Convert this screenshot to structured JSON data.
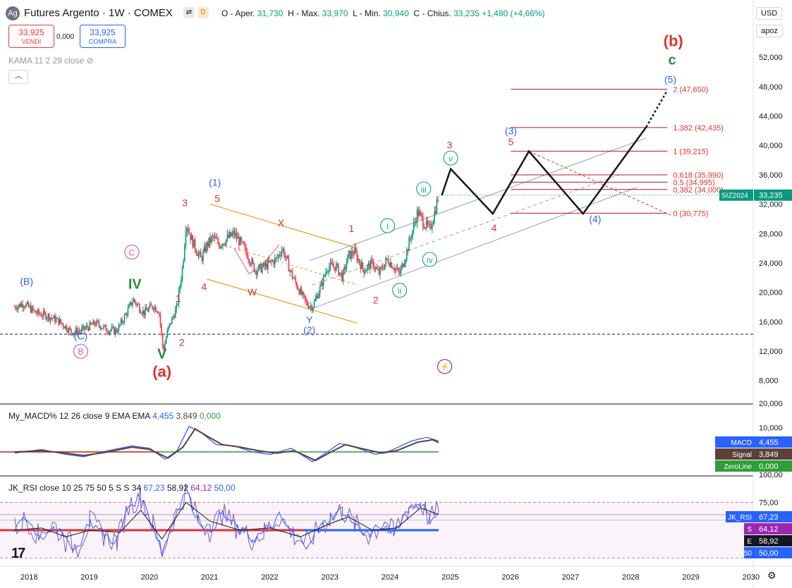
{
  "header": {
    "symbol_icon": "silver-icon",
    "title": "Futures Argento · 1W · COMEX",
    "badge_d": "D",
    "ohlc": {
      "open_label": "O - Aper.",
      "open": "31,730",
      "high_label": "H - Max.",
      "high": "33,970",
      "low_label": "L - Min.",
      "low": "30,940",
      "close_label": "C - Chius.",
      "close": "33,235",
      "change": "+1,480 (+4,66%)"
    },
    "sell_price": "33,925",
    "sell_label": "VENDI",
    "spread": "0,000",
    "buy_price": "33,925",
    "buy_label": "COMPRA",
    "indicator_kama": "KAMA 11 2 29 close",
    "collapse_icon": "chevron-up-icon"
  },
  "right_controls": {
    "currency": "USD",
    "scale": "apoz"
  },
  "colors": {
    "up": "#089981",
    "down": "#f23645",
    "blue": "#2962ff",
    "red": "#e03131",
    "green": "#2e8b3a",
    "teal": "#22a699",
    "pink": "#e05a9c",
    "orange": "#f59a23",
    "fib": "#b2182b"
  },
  "chart_data": [
    {
      "type": "candlestick",
      "title": "Futures Argento · 1W · COMEX",
      "x_axis": {
        "ticks": [
          "2018",
          "2019",
          "2020",
          "2021",
          "2022",
          "2023",
          "2024",
          "2025",
          "2026",
          "2027",
          "2028",
          "2029",
          "2030"
        ]
      },
      "y_axis": {
        "ticks": [
          "52,000",
          "48,000",
          "44,000",
          "40,000",
          "36,000",
          "32,000",
          "28,000",
          "24,000",
          "20,000",
          "16,000",
          "12,000",
          "8,000"
        ],
        "range": [
          5500,
          55500
        ]
      },
      "price_path": [
        [
          2017.75,
          18.0
        ],
        [
          2017.9,
          18.5
        ],
        [
          2018.1,
          17.2
        ],
        [
          2018.3,
          16.8
        ],
        [
          2018.5,
          16.0
        ],
        [
          2018.7,
          14.6
        ],
        [
          2018.85,
          14.8
        ],
        [
          2019.1,
          15.8
        ],
        [
          2019.3,
          14.9
        ],
        [
          2019.45,
          14.8
        ],
        [
          2019.6,
          17.0
        ],
        [
          2019.72,
          19.0
        ],
        [
          2019.9,
          17.2
        ],
        [
          2020.05,
          18.2
        ],
        [
          2020.15,
          17.5
        ],
        [
          2020.22,
          12.0
        ],
        [
          2020.3,
          15.0
        ],
        [
          2020.45,
          18.0
        ],
        [
          2020.55,
          24.0
        ],
        [
          2020.6,
          29.5
        ],
        [
          2020.7,
          27.0
        ],
        [
          2020.85,
          24.5
        ],
        [
          2020.95,
          26.5
        ],
        [
          2021.05,
          27.5
        ],
        [
          2021.15,
          26.5
        ],
        [
          2021.4,
          28.0
        ],
        [
          2021.6,
          25.5
        ],
        [
          2021.75,
          23.0
        ],
        [
          2021.9,
          23.5
        ],
        [
          2022.1,
          24.5
        ],
        [
          2022.2,
          26.0
        ],
        [
          2022.35,
          22.5
        ],
        [
          2022.5,
          20.0
        ],
        [
          2022.6,
          18.5
        ],
        [
          2022.7,
          18.0
        ],
        [
          2022.85,
          21.0
        ],
        [
          2022.95,
          23.5
        ],
        [
          2023.1,
          23.5
        ],
        [
          2023.2,
          22.0
        ],
        [
          2023.3,
          25.0
        ],
        [
          2023.4,
          25.5
        ],
        [
          2023.55,
          23.0
        ],
        [
          2023.7,
          24.0
        ],
        [
          2023.8,
          22.5
        ],
        [
          2023.95,
          24.5
        ],
        [
          2024.05,
          23.5
        ],
        [
          2024.15,
          22.5
        ],
        [
          2024.25,
          25.0
        ],
        [
          2024.35,
          28.0
        ],
        [
          2024.45,
          31.0
        ],
        [
          2024.55,
          29.5
        ],
        [
          2024.65,
          28.5
        ],
        [
          2024.72,
          30.5
        ],
        [
          2024.8,
          33.24
        ]
      ],
      "last_price_label": "33,235",
      "contract_label": "SIZ2024",
      "projection": {
        "path": [
          [
            2024.85,
            33.2
          ],
          [
            2025.0,
            36.8
          ],
          [
            2025.7,
            30.7
          ],
          [
            2026.3,
            39.2
          ],
          [
            2027.2,
            30.7
          ],
          [
            2028.25,
            42.5
          ]
        ],
        "dotted": [
          [
            2028.25,
            42.5
          ],
          [
            2028.6,
            47.5
          ]
        ]
      },
      "fibonacci": [
        {
          "label": "2 (47,650)",
          "value": 47.65
        },
        {
          "label": "1,382 (42,435)",
          "value": 42.435
        },
        {
          "label": "1 (39,215)",
          "value": 39.215
        },
        {
          "label": "0,618 (35,990)",
          "value": 35.99
        },
        {
          "label": "0,5 (34,995)",
          "value": 34.995
        },
        {
          "label": "0,382 (34,000)",
          "value": 34.0
        },
        {
          "label": "0 (30,775)",
          "value": 30.775
        }
      ],
      "dashed_support": 14.3,
      "wave_labels": [
        {
          "text": "(B)",
          "x": 2017.95,
          "y": 21.0,
          "color": "blue"
        },
        {
          "text": "(C)",
          "x": 2018.85,
          "y": 13.6,
          "color": "blue"
        },
        {
          "text": "B",
          "x": 2018.85,
          "y": 11.5,
          "color": "pink",
          "circled": true
        },
        {
          "text": "C",
          "x": 2019.7,
          "y": 25.0,
          "color": "pink",
          "circled": true
        },
        {
          "text": "IV",
          "x": 2019.75,
          "y": 20.5,
          "color": "green",
          "bold": true
        },
        {
          "text": "V",
          "x": 2020.2,
          "y": 11.0,
          "color": "green",
          "bold": true
        },
        {
          "text": "(a)",
          "x": 2020.2,
          "y": 8.5,
          "color": "red",
          "bold": true
        },
        {
          "text": "1",
          "x": 2020.47,
          "y": 18.7,
          "color": "red"
        },
        {
          "text": "2",
          "x": 2020.53,
          "y": 12.7,
          "color": "red"
        },
        {
          "text": "3",
          "x": 2020.58,
          "y": 31.7,
          "color": "red"
        },
        {
          "text": "4",
          "x": 2020.9,
          "y": 20.3,
          "color": "red"
        },
        {
          "text": "(1)",
          "x": 2021.08,
          "y": 34.5,
          "color": "blue"
        },
        {
          "text": "5",
          "x": 2021.12,
          "y": 32.3,
          "color": "red"
        },
        {
          "text": "W",
          "x": 2021.7,
          "y": 19.6,
          "color": "red"
        },
        {
          "text": "X",
          "x": 2022.18,
          "y": 29.0,
          "color": "red"
        },
        {
          "text": "Y",
          "x": 2022.65,
          "y": 15.8,
          "color": "blue"
        },
        {
          "text": "(2)",
          "x": 2022.65,
          "y": 14.4,
          "color": "blue"
        },
        {
          "text": "1",
          "x": 2023.35,
          "y": 28.2,
          "color": "red"
        },
        {
          "text": "2",
          "x": 2023.75,
          "y": 18.5,
          "color": "red"
        },
        {
          "text": "i",
          "x": 2023.95,
          "y": 28.6,
          "color": "teal",
          "circled": true
        },
        {
          "text": "ii",
          "x": 2024.15,
          "y": 19.8,
          "color": "teal",
          "circled": true
        },
        {
          "text": "iii",
          "x": 2024.55,
          "y": 33.6,
          "color": "teal",
          "circled": true
        },
        {
          "text": "iv",
          "x": 2024.65,
          "y": 24.0,
          "color": "teal",
          "circled": true
        },
        {
          "text": "3",
          "x": 2024.98,
          "y": 39.6,
          "color": "red"
        },
        {
          "text": "v",
          "x": 2025.0,
          "y": 37.8,
          "color": "teal",
          "circled": true
        },
        {
          "text": "4",
          "x": 2025.72,
          "y": 28.3,
          "color": "red"
        },
        {
          "text": "(3)",
          "x": 2026.0,
          "y": 41.5,
          "color": "blue"
        },
        {
          "text": "5",
          "x": 2026.0,
          "y": 40.0,
          "color": "red"
        },
        {
          "text": "(4)",
          "x": 2027.4,
          "y": 29.5,
          "color": "blue"
        },
        {
          "text": "(5)",
          "x": 2028.65,
          "y": 48.5,
          "color": "blue"
        },
        {
          "text": "c",
          "x": 2028.68,
          "y": 51.0,
          "color": "green",
          "bold": true
        },
        {
          "text": "(b)",
          "x": 2028.7,
          "y": 53.5,
          "color": "red",
          "bold": true
        }
      ],
      "alert_icon": "lightning-icon"
    },
    {
      "type": "line",
      "title": "My_MACD% 12 26 close 9 EMA EMA",
      "legend_values": [
        "4,455",
        "3,849",
        "0,000"
      ],
      "y_axis": {
        "ticks": [
          "20,000",
          "10,000"
        ],
        "range": [
          -6,
          20
        ]
      },
      "series": [
        {
          "name": "MACD",
          "value_label": "4,455",
          "color": "#2962ff",
          "values": [
            [
              2017.75,
              -0.5
            ],
            [
              2018.2,
              1.0
            ],
            [
              2018.6,
              -1.0
            ],
            [
              2018.9,
              -2.0
            ],
            [
              2019.3,
              0.5
            ],
            [
              2019.7,
              2.5
            ],
            [
              2020.0,
              1.5
            ],
            [
              2020.25,
              -3.0
            ],
            [
              2020.45,
              0.5
            ],
            [
              2020.65,
              10.5
            ],
            [
              2020.85,
              8.0
            ],
            [
              2021.1,
              3.0
            ],
            [
              2021.4,
              2.5
            ],
            [
              2021.7,
              0.0
            ],
            [
              2022.0,
              -1.0
            ],
            [
              2022.35,
              1.5
            ],
            [
              2022.7,
              -4.0
            ],
            [
              2022.95,
              0.0
            ],
            [
              2023.15,
              3.5
            ],
            [
              2023.4,
              2.0
            ],
            [
              2023.75,
              -1.0
            ],
            [
              2024.0,
              0.5
            ],
            [
              2024.35,
              4.5
            ],
            [
              2024.6,
              6.0
            ],
            [
              2024.8,
              4.5
            ]
          ]
        },
        {
          "name": "Signal",
          "value_label": "3,849",
          "color": "#5d4037",
          "values": [
            [
              2017.75,
              0.0
            ],
            [
              2018.2,
              0.5
            ],
            [
              2018.6,
              -0.5
            ],
            [
              2018.9,
              -1.5
            ],
            [
              2019.3,
              0.0
            ],
            [
              2019.7,
              2.0
            ],
            [
              2020.0,
              1.0
            ],
            [
              2020.3,
              -2.5
            ],
            [
              2020.55,
              2.0
            ],
            [
              2020.75,
              9.5
            ],
            [
              2020.95,
              6.5
            ],
            [
              2021.2,
              3.0
            ],
            [
              2021.5,
              2.0
            ],
            [
              2021.8,
              0.5
            ],
            [
              2022.1,
              -0.5
            ],
            [
              2022.4,
              0.5
            ],
            [
              2022.75,
              -3.5
            ],
            [
              2023.05,
              0.5
            ],
            [
              2023.25,
              3.0
            ],
            [
              2023.5,
              1.5
            ],
            [
              2023.85,
              -0.5
            ],
            [
              2024.1,
              0.5
            ],
            [
              2024.45,
              4.0
            ],
            [
              2024.7,
              5.0
            ],
            [
              2024.8,
              3.8
            ]
          ]
        },
        {
          "name": "ZeroLine",
          "value_label": "0,000",
          "color": "#2e9e3a",
          "values": [
            [
              2017.75,
              0
            ],
            [
              2024.8,
              0
            ]
          ]
        }
      ]
    },
    {
      "type": "line",
      "title": "JK_RSI close 10 25 75 50 5 S S 34",
      "legend_values": [
        "67,23",
        "58,92",
        "64,12",
        "50,00"
      ],
      "y_axis": {
        "ticks": [
          "100,00",
          "75,00"
        ],
        "range": [
          10,
          105
        ]
      },
      "series": [
        {
          "name": "JK_RSI",
          "value_label": "67,23",
          "color": "#2962ff",
          "values": [
            [
              2017.75,
              52
            ],
            [
              2017.95,
              60
            ],
            [
              2018.15,
              45
            ],
            [
              2018.4,
              55
            ],
            [
              2018.6,
              40
            ],
            [
              2018.8,
              35
            ],
            [
              2019.0,
              58
            ],
            [
              2019.25,
              45
            ],
            [
              2019.45,
              40
            ],
            [
              2019.65,
              72
            ],
            [
              2019.85,
              80
            ],
            [
              2020.05,
              55
            ],
            [
              2020.2,
              30
            ],
            [
              2020.4,
              60
            ],
            [
              2020.6,
              85
            ],
            [
              2020.8,
              60
            ],
            [
              2021.0,
              50
            ],
            [
              2021.2,
              65
            ],
            [
              2021.45,
              52
            ],
            [
              2021.7,
              42
            ],
            [
              2021.9,
              48
            ],
            [
              2022.15,
              62
            ],
            [
              2022.4,
              45
            ],
            [
              2022.6,
              38
            ],
            [
              2022.8,
              50
            ],
            [
              2023.0,
              62
            ],
            [
              2023.2,
              68
            ],
            [
              2023.4,
              55
            ],
            [
              2023.65,
              45
            ],
            [
              2023.85,
              55
            ],
            [
              2024.05,
              48
            ],
            [
              2024.3,
              70
            ],
            [
              2024.5,
              75
            ],
            [
              2024.65,
              60
            ],
            [
              2024.8,
              67
            ]
          ]
        },
        {
          "name": "S",
          "value_label": "64,12",
          "color": "#9c27b0",
          "values": [
            [
              2017.75,
              50
            ],
            [
              2018.2,
              52
            ],
            [
              2018.6,
              44
            ],
            [
              2019.0,
              50
            ],
            [
              2019.5,
              48
            ],
            [
              2019.85,
              68
            ],
            [
              2020.2,
              42
            ],
            [
              2020.6,
              75
            ],
            [
              2021.0,
              58
            ],
            [
              2021.5,
              50
            ],
            [
              2022.0,
              52
            ],
            [
              2022.5,
              44
            ],
            [
              2023.0,
              56
            ],
            [
              2023.3,
              62
            ],
            [
              2023.7,
              50
            ],
            [
              2024.1,
              52
            ],
            [
              2024.5,
              70
            ],
            [
              2024.8,
              64
            ]
          ]
        },
        {
          "name": "E",
          "value_label": "58,92",
          "color": "#131722",
          "values": [
            [
              2017.75,
              50
            ],
            [
              2024.8,
              59
            ]
          ]
        },
        {
          "name": "50",
          "value_label": "50,00",
          "color": "#131722",
          "values": [
            [
              2017.75,
              50
            ],
            [
              2024.8,
              50
            ]
          ]
        }
      ]
    }
  ]
}
